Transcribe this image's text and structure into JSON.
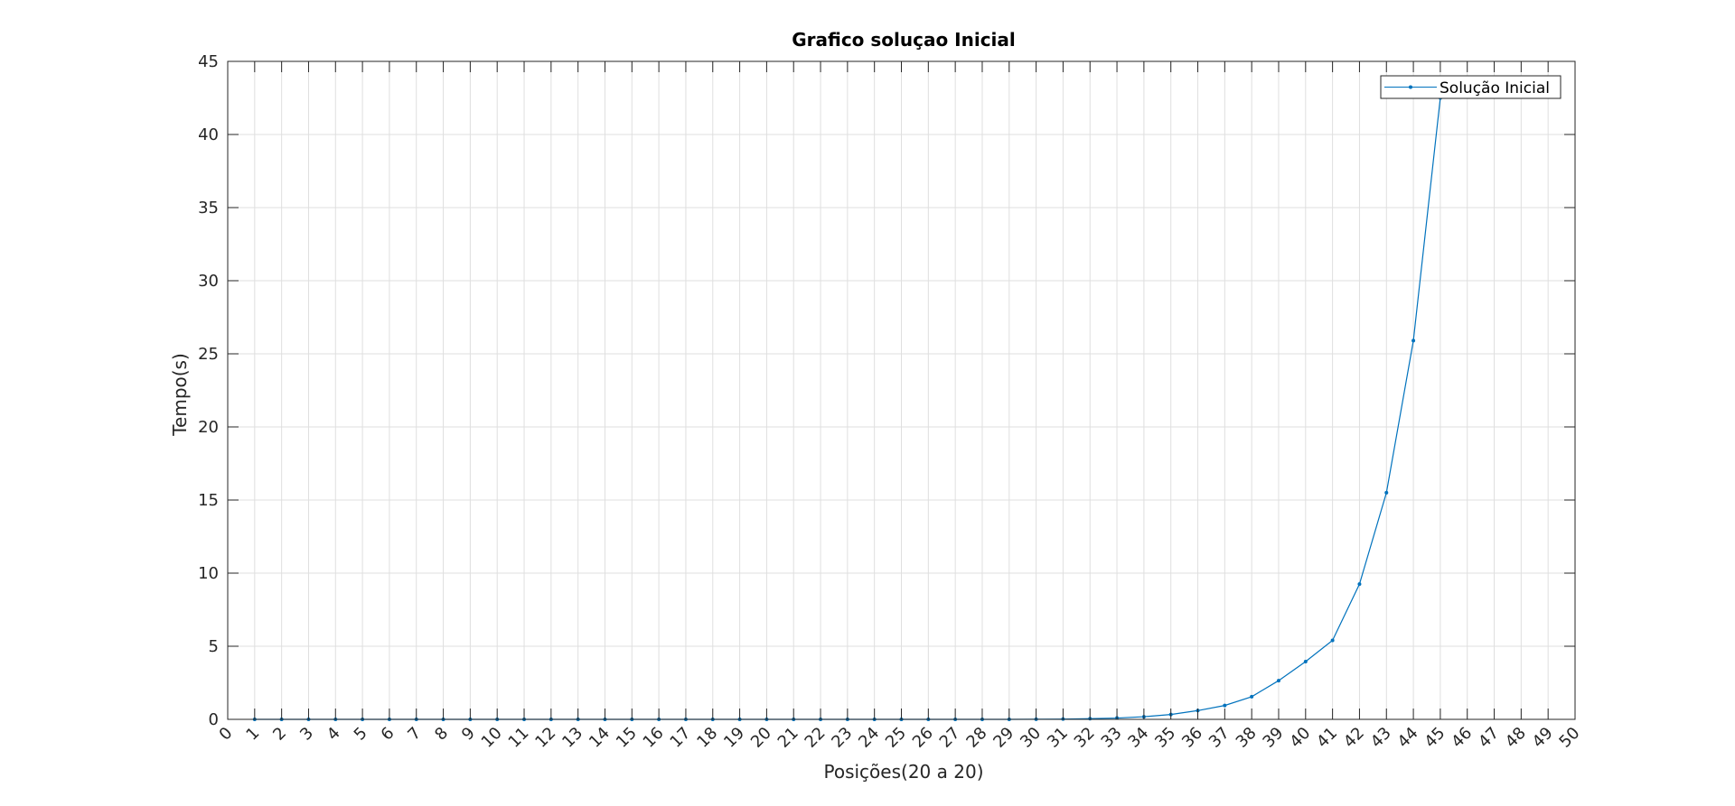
{
  "chart_data": {
    "type": "line",
    "title": "Grafico soluçao Inicial",
    "xlabel": "Posições(20 a 20)",
    "ylabel": "Tempo(s)",
    "xlim": [
      0,
      50
    ],
    "ylim": [
      0,
      45
    ],
    "xticks": [
      0,
      1,
      2,
      3,
      4,
      5,
      6,
      7,
      8,
      9,
      10,
      11,
      12,
      13,
      14,
      15,
      16,
      17,
      18,
      19,
      20,
      21,
      22,
      23,
      24,
      25,
      26,
      27,
      28,
      29,
      30,
      31,
      32,
      33,
      34,
      35,
      36,
      37,
      38,
      39,
      40,
      41,
      42,
      43,
      44,
      45,
      46,
      47,
      48,
      49,
      50
    ],
    "yticks": [
      0,
      5,
      10,
      15,
      20,
      25,
      30,
      35,
      40,
      45
    ],
    "grid": true,
    "legend_position": "top-right",
    "series": [
      {
        "name": "Solução Inicial",
        "color": "#0072BD",
        "marker": "dot",
        "x": [
          1,
          2,
          3,
          4,
          5,
          6,
          7,
          8,
          9,
          10,
          11,
          12,
          13,
          14,
          15,
          16,
          17,
          18,
          19,
          20,
          21,
          22,
          23,
          24,
          25,
          26,
          27,
          28,
          29,
          30,
          31,
          32,
          33,
          34,
          35,
          36,
          37,
          38,
          39,
          40,
          41,
          42,
          43,
          44,
          45
        ],
        "y": [
          0,
          0,
          0,
          0,
          0,
          0,
          0,
          0,
          0,
          0,
          0,
          0,
          0,
          0,
          0,
          0,
          0,
          0,
          0,
          0,
          0,
          0,
          0,
          0,
          0,
          0,
          0,
          0,
          0,
          0.01,
          0.02,
          0.05,
          0.09,
          0.18,
          0.33,
          0.6,
          0.95,
          1.55,
          2.65,
          3.95,
          5.4,
          9.25,
          15.5,
          25.9,
          42.5
        ]
      }
    ]
  }
}
